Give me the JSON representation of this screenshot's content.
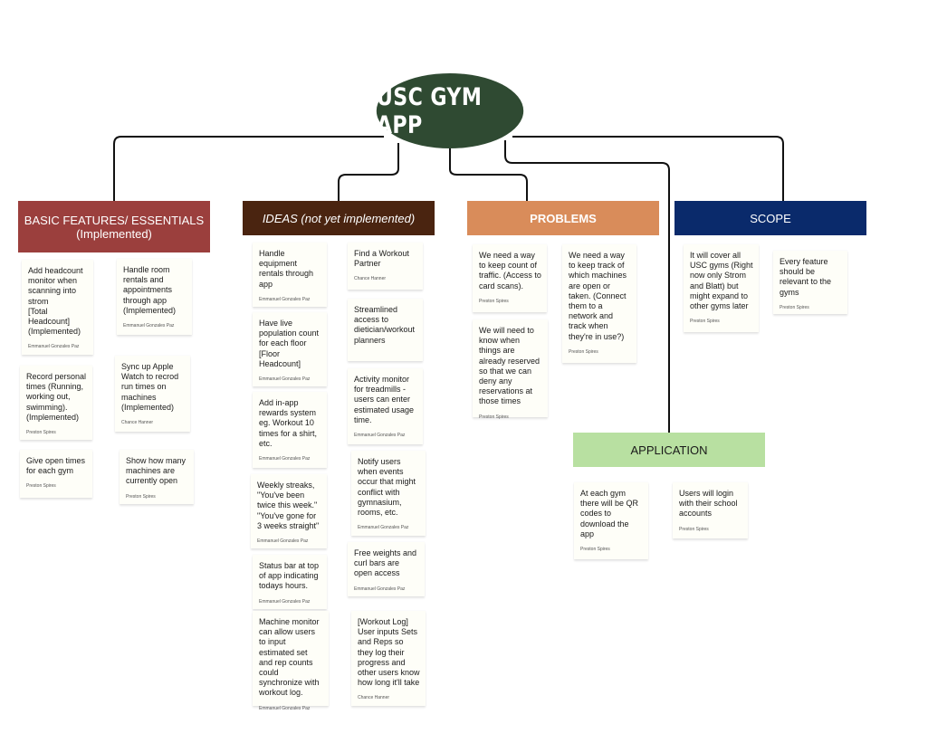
{
  "title": "USC GYM APP",
  "colors": {
    "title_oval": "#2f4a32",
    "basic": "#9b3f3d",
    "ideas": "#4a2410",
    "problems": "#d98c5a",
    "scope": "#0a2a6b",
    "application": "#b8e0a1",
    "connector": "#111111"
  },
  "sections": {
    "basic": {
      "label": "BASIC FEATURES/ ESSENTIALS\n(Implemented)",
      "notes": [
        {
          "text": "Add headcount monitor when scanning into strom\n[Total Headcount]\n(Implemented)",
          "author": "Emmanuel Gonzales Paz"
        },
        {
          "text": "Handle room rentals and appointments through app\n(Implemented)",
          "author": "Emmanuel Gonzales Paz"
        },
        {
          "text": "Record personal times (Running, working out, swimming).\n(Implemented)",
          "author": "Preston Spires"
        },
        {
          "text": "Sync up Apple Watch to recrod run times on machines\n(Implemented)",
          "author": "Chance Hanner"
        },
        {
          "text": "Give open times for each gym",
          "author": "Preston Spires"
        },
        {
          "text": "Show how many machines are currently open",
          "author": "Preston Spires"
        }
      ]
    },
    "ideas": {
      "label": "IDEAS (not yet implemented)",
      "notes": [
        {
          "text": "Handle equipment rentals through app",
          "author": "Emmanuel Gonzales Paz"
        },
        {
          "text": "Find a Workout Partner",
          "author": "Chance Hanner"
        },
        {
          "text": "Have live population count for each floor\n[Floor Headcount]",
          "author": "Emmanuel Gonzales Paz"
        },
        {
          "text": "Streamlined access to dietician/workout planners",
          "author": ""
        },
        {
          "text": "Add in-app rewards system eg. Workout 10 times for a shirt, etc.",
          "author": "Emmanuel Gonzales Paz"
        },
        {
          "text": "Activity monitor for treadmills - users can enter estimated usage time.",
          "author": "Emmanuel Gonzales Paz"
        },
        {
          "text": "Weekly streaks, \"You've been twice this week.\" \"You've gone for 3 weeks straight\"",
          "author": "Emmanuel Gonzales Paz"
        },
        {
          "text": "Notify users when events occur that might conflict with gymnasium, rooms, etc.",
          "author": "Emmanuel Gonzales Paz"
        },
        {
          "text": "Status bar at top of app indicating todays hours.",
          "author": "Emmanuel Gonzales Paz"
        },
        {
          "text": "Free weights and curl bars are open access",
          "author": "Emmanuel Gonzales Paz"
        },
        {
          "text": "Machine monitor can allow users to input estimated set and rep counts could synchronize with workout log.",
          "author": "Emmanuel Gonzales Paz"
        },
        {
          "text": "[Workout Log] User inputs Sets and Reps so they log their progress and other users know how long it'll take",
          "author": "Chance Hanner"
        }
      ]
    },
    "problems": {
      "label": "PROBLEMS",
      "notes": [
        {
          "text": "We need a way to keep count of traffic. (Access to card scans).",
          "author": "Preston Spires"
        },
        {
          "text": "We need a way to keep track of which machines are open or taken. (Connect them to a network and track when they're in use?)",
          "author": "Preston Spires"
        },
        {
          "text": "We will need to know when things are already reserved so that we can deny any reservations at those times",
          "author": "Preston Spires"
        }
      ]
    },
    "scope": {
      "label": "SCOPE",
      "notes": [
        {
          "text": "It will cover all USC gyms (Right now only Strom and Blatt) but might expand to other gyms later",
          "author": "Preston Spires"
        },
        {
          "text": "Every feature should be relevant to the gyms",
          "author": "Preston Spires"
        }
      ]
    },
    "application": {
      "label": "APPLICATION",
      "notes": [
        {
          "text": "At each gym there will be QR codes to download the app",
          "author": "Preston Spires"
        },
        {
          "text": "Users will login with their school accounts",
          "author": "Preston Spires"
        }
      ]
    }
  }
}
